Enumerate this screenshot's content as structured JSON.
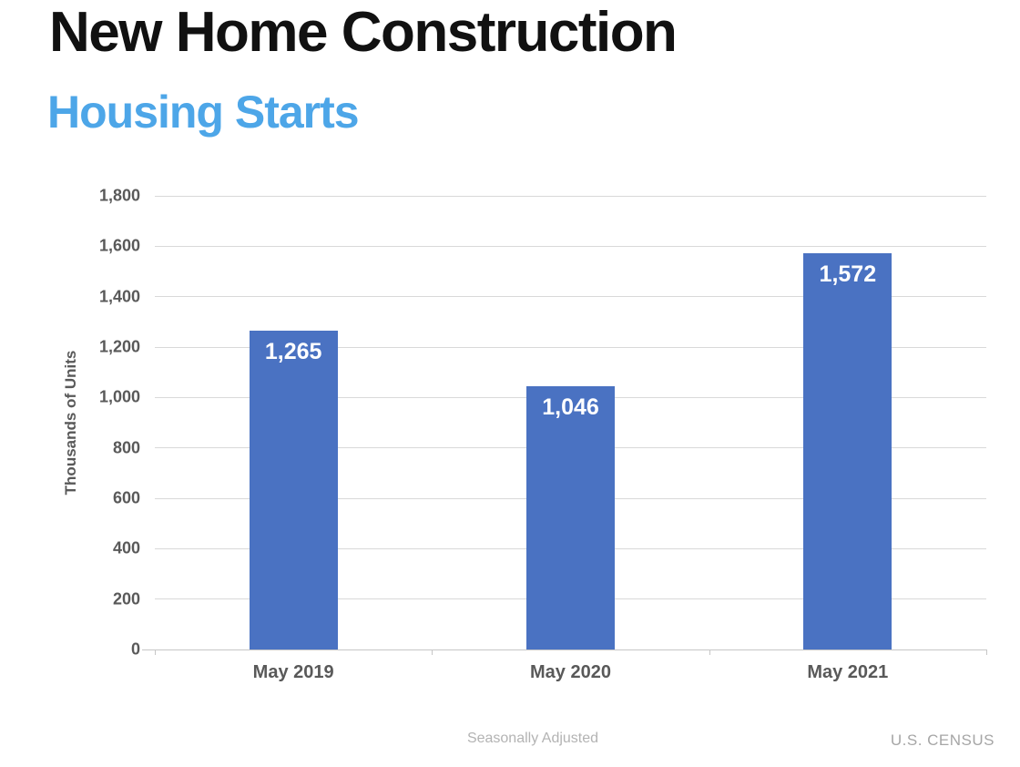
{
  "header": {
    "title": "New Home Construction",
    "subtitle": "Housing Starts"
  },
  "chart_data": {
    "type": "bar",
    "title": "New Home Construction",
    "subtitle": "Housing Starts",
    "categories": [
      "May 2019",
      "May 2020",
      "May 2021"
    ],
    "values": [
      1265,
      1046,
      1572
    ],
    "value_labels": [
      "1,265",
      "1,046",
      "1,572"
    ],
    "xlabel": "",
    "ylabel": "Thousands of Units",
    "ylim": [
      0,
      1800
    ],
    "ytick_step": 200,
    "ytick_labels": [
      "0",
      "200",
      "400",
      "600",
      "800",
      "1,000",
      "1,200",
      "1,400",
      "1,600",
      "1,800"
    ],
    "grid": true,
    "legend": false,
    "bar_color": "#4A72C2",
    "bar_label_color": "#FFFFFF"
  },
  "footer": {
    "note": "Seasonally Adjusted",
    "source": "U.S. CENSUS"
  },
  "colors": {
    "title": "#111111",
    "subtitle": "#4DA6E8",
    "axis_text": "#595959",
    "gridline": "#D9D9D9",
    "axis_line": "#C6C6C6",
    "footer_note": "#B3B3B3",
    "footer_source": "#A6A6A6"
  }
}
